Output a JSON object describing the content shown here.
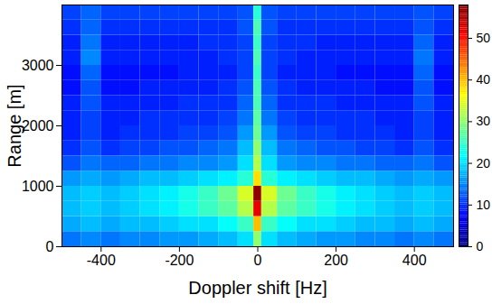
{
  "chart_data": {
    "type": "heatmap",
    "xlabel": "Doppler shift [Hz]",
    "ylabel": "Range [m]",
    "xlim": [
      -500,
      500
    ],
    "ylim": [
      0,
      4000
    ],
    "xticks": [
      -400,
      -200,
      0,
      200,
      400
    ],
    "yticks": [
      0,
      1000,
      2000,
      3000
    ],
    "x_bins": [
      -500,
      -450,
      -400,
      -350,
      -300,
      -250,
      -200,
      -150,
      -100,
      -50,
      -10,
      10,
      50,
      100,
      150,
      200,
      250,
      300,
      350,
      400,
      450,
      500
    ],
    "y_bins": [
      0,
      250,
      500,
      750,
      1000,
      1250,
      1500,
      1750,
      2000,
      2250,
      2500,
      2750,
      3000,
      3250,
      3500,
      3750,
      4000
    ],
    "cells": [
      [
        14,
        15,
        14,
        15,
        15,
        16,
        16,
        17,
        18,
        20,
        30,
        20,
        18,
        17,
        16,
        16,
        15,
        15,
        14,
        15,
        14
      ],
      [
        17,
        18,
        17,
        18,
        18,
        19,
        20,
        20,
        22,
        25,
        40,
        25,
        22,
        20,
        20,
        19,
        18,
        18,
        17,
        18,
        17
      ],
      [
        18,
        19,
        18,
        19,
        20,
        21,
        23,
        25,
        27,
        32,
        52,
        32,
        27,
        25,
        23,
        21,
        20,
        19,
        18,
        19,
        18
      ],
      [
        18,
        19,
        18,
        19,
        20,
        21,
        23,
        25,
        28,
        34,
        57,
        34,
        28,
        25,
        23,
        21,
        20,
        19,
        18,
        19,
        18
      ],
      [
        16,
        17,
        16,
        17,
        18,
        18,
        19,
        20,
        21,
        24,
        38,
        24,
        21,
        20,
        19,
        18,
        18,
        17,
        16,
        17,
        16
      ],
      [
        12,
        14,
        13,
        13,
        14,
        14,
        15,
        15,
        16,
        20,
        32,
        20,
        16,
        15,
        15,
        14,
        14,
        13,
        13,
        14,
        12
      ],
      [
        10,
        12,
        10,
        11,
        11,
        12,
        12,
        13,
        14,
        18,
        30,
        18,
        14,
        13,
        12,
        12,
        11,
        11,
        10,
        12,
        10
      ],
      [
        9,
        11,
        9,
        10,
        10,
        10,
        11,
        11,
        12,
        16,
        28,
        16,
        12,
        11,
        11,
        10,
        10,
        10,
        9,
        11,
        9
      ],
      [
        9,
        11,
        9,
        9,
        10,
        10,
        10,
        10,
        11,
        14,
        27,
        14,
        11,
        10,
        10,
        10,
        10,
        9,
        9,
        11,
        9
      ],
      [
        9,
        12,
        9,
        9,
        9,
        9,
        10,
        10,
        10,
        13,
        26,
        13,
        10,
        10,
        10,
        9,
        9,
        9,
        9,
        12,
        9
      ],
      [
        8,
        12,
        8,
        8,
        9,
        9,
        9,
        9,
        10,
        12,
        26,
        12,
        10,
        9,
        9,
        9,
        9,
        8,
        8,
        12,
        8
      ],
      [
        8,
        13,
        8,
        8,
        8,
        8,
        9,
        9,
        9,
        11,
        25,
        11,
        9,
        9,
        9,
        8,
        8,
        8,
        8,
        13,
        8
      ],
      [
        9,
        15,
        9,
        9,
        9,
        9,
        9,
        9,
        10,
        11,
        26,
        11,
        10,
        9,
        9,
        9,
        9,
        9,
        9,
        14,
        9
      ],
      [
        9,
        14,
        9,
        9,
        9,
        9,
        9,
        10,
        10,
        11,
        25,
        11,
        10,
        10,
        9,
        9,
        9,
        9,
        9,
        13,
        9
      ],
      [
        10,
        13,
        10,
        10,
        10,
        10,
        10,
        10,
        10,
        12,
        26,
        12,
        10,
        10,
        10,
        10,
        10,
        10,
        10,
        12,
        10
      ],
      [
        11,
        13,
        11,
        11,
        11,
        11,
        11,
        11,
        11,
        12,
        24,
        12,
        11,
        11,
        11,
        11,
        11,
        11,
        11,
        12,
        11
      ]
    ],
    "colorbar_range": [
      0,
      58
    ],
    "colorbar_ticks": [
      0,
      10,
      20,
      30,
      40,
      50
    ]
  }
}
